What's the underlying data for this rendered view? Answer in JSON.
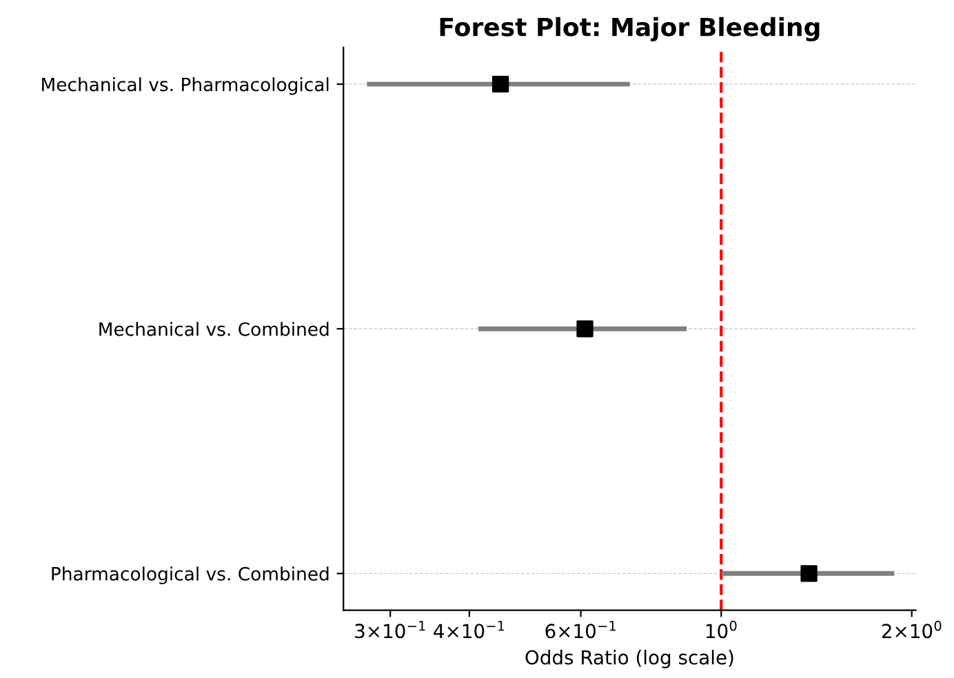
{
  "chart_data": {
    "type": "scatter",
    "orientation": "horizontal",
    "title": "Forest Plot: Major Bleeding",
    "xlabel": "Odds Ratio (log scale)",
    "categories": [
      "Mechanical vs. Pharmacological",
      "Mechanical vs. Combined",
      "Pharmacological vs. Combined"
    ],
    "series": [
      {
        "color": "#000000",
        "values": [
          0.448,
          0.609,
          1.376
        ],
        "errors": [
          [
            0.278,
            0.711
          ],
          [
            0.417,
            0.874
          ],
          [
            1.01,
            1.86
          ]
        ]
      }
    ],
    "log": "x",
    "xlim": [
      0.253,
      2.03
    ],
    "xticks": [
      {
        "value": 0.3,
        "label": "3×10$^{−1}$"
      },
      {
        "value": 0.4,
        "label": "4×10$^{−1}$"
      },
      {
        "value": 0.6,
        "label": "6×10$^{−1}$"
      },
      {
        "value": 1,
        "label": "10$^{0}$"
      },
      {
        "value": 2,
        "label": "2×10$^{0}$"
      }
    ],
    "ref_lines": [
      {
        "axis": "x",
        "value": 1,
        "color": "#ff0000",
        "line_style": "dashed"
      }
    ],
    "grid": "y",
    "marker": "square"
  }
}
